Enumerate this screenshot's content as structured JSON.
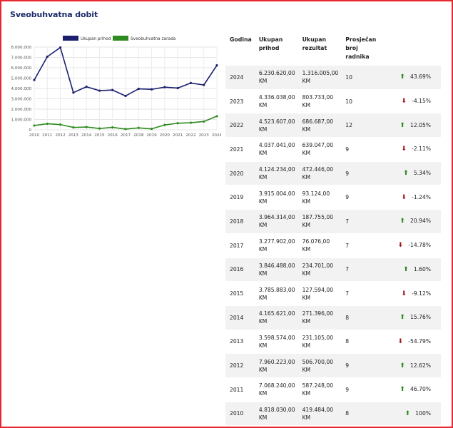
{
  "page": {
    "title": "Sveobuhvatna dobit"
  },
  "chart_data": {
    "type": "line",
    "x": [
      "2010",
      "2011",
      "2012",
      "2013",
      "2014",
      "2015",
      "2016",
      "2017",
      "2018",
      "2019",
      "2020",
      "2021",
      "2022",
      "2023",
      "2024"
    ],
    "series": [
      {
        "name": "Ukupan prihod",
        "color": "#1b1f6e",
        "values": [
          4818030,
          7068240,
          7960223,
          3598574,
          4165621,
          3785883,
          3846488,
          3277902,
          3964314,
          3915004,
          4124234,
          4037041,
          4523607,
          4336038,
          6230620
        ]
      },
      {
        "name": "Sveobuhvatna zarada",
        "color": "#2e8b1f",
        "values": [
          419484,
          587248,
          506700,
          231105,
          271396,
          127594,
          234701,
          76076,
          187755,
          93124,
          472446,
          639047,
          686687,
          803733,
          1316005
        ]
      }
    ],
    "ylim": [
      0,
      8000000
    ],
    "yticks": [
      "8,000,000",
      "7,000,000",
      "6,000,000",
      "5,000,000",
      "4,000,000",
      "3,000,000",
      "2,000,000",
      "1,000,000",
      "0"
    ],
    "legend_position": "top",
    "grid": true
  },
  "table": {
    "headers": [
      "Godina",
      "Ukupan prihod",
      "Ukupan rezultat",
      "Prosječan broj radnika"
    ],
    "rows": [
      {
        "year": "2024",
        "income": "6.230.620,00 KM",
        "result": "1.316.005,00 KM",
        "workers": "10",
        "dir": "up",
        "pct": "43.69%"
      },
      {
        "year": "2023",
        "income": "4.336.038,00 KM",
        "result": "803.733,00 KM",
        "workers": "10",
        "dir": "down",
        "pct": "-4.15%"
      },
      {
        "year": "2022",
        "income": "4.523.607,00 KM",
        "result": "686.687,00 KM",
        "workers": "12",
        "dir": "up",
        "pct": "12.05%"
      },
      {
        "year": "2021",
        "income": "4.037.041,00 KM",
        "result": "639.047,00 KM",
        "workers": "9",
        "dir": "down",
        "pct": "-2.11%"
      },
      {
        "year": "2020",
        "income": "4.124.234,00 KM",
        "result": "472.446,00 KM",
        "workers": "9",
        "dir": "up",
        "pct": "5.34%"
      },
      {
        "year": "2019",
        "income": "3.915.004,00 KM",
        "result": "93.124,00 KM",
        "workers": "9",
        "dir": "down",
        "pct": "-1.24%"
      },
      {
        "year": "2018",
        "income": "3.964.314,00 KM",
        "result": "187.755,00 KM",
        "workers": "7",
        "dir": "up",
        "pct": "20.94%"
      },
      {
        "year": "2017",
        "income": "3.277.902,00 KM",
        "result": "76.076,00 KM",
        "workers": "7",
        "dir": "down",
        "pct": "-14.78%"
      },
      {
        "year": "2016",
        "income": "3.846.488,00 KM",
        "result": "234.701,00 KM",
        "workers": "7",
        "dir": "up",
        "pct": "1.60%"
      },
      {
        "year": "2015",
        "income": "3.785.883,00 KM",
        "result": "127.594,00 KM",
        "workers": "7",
        "dir": "down",
        "pct": "-9.12%"
      },
      {
        "year": "2014",
        "income": "4.165.621,00 KM",
        "result": "271.396,00 KM",
        "workers": "8",
        "dir": "up",
        "pct": "15.76%"
      },
      {
        "year": "2013",
        "income": "3.598.574,00 KM",
        "result": "231.105,00 KM",
        "workers": "8",
        "dir": "down",
        "pct": "-54.79%"
      },
      {
        "year": "2012",
        "income": "7.960.223,00 KM",
        "result": "506.700,00 KM",
        "workers": "9",
        "dir": "up",
        "pct": "12.62%"
      },
      {
        "year": "2011",
        "income": "7.068.240,00 KM",
        "result": "587.248,00 KM",
        "workers": "9",
        "dir": "up",
        "pct": "46.70%"
      },
      {
        "year": "2010",
        "income": "4.818.030,00 KM",
        "result": "419.484,00 KM",
        "workers": "8",
        "dir": "up",
        "pct": "100%"
      }
    ]
  },
  "colors": {
    "up": "#2d8a1f",
    "down": "#a11515",
    "title": "#1b2a6b"
  }
}
